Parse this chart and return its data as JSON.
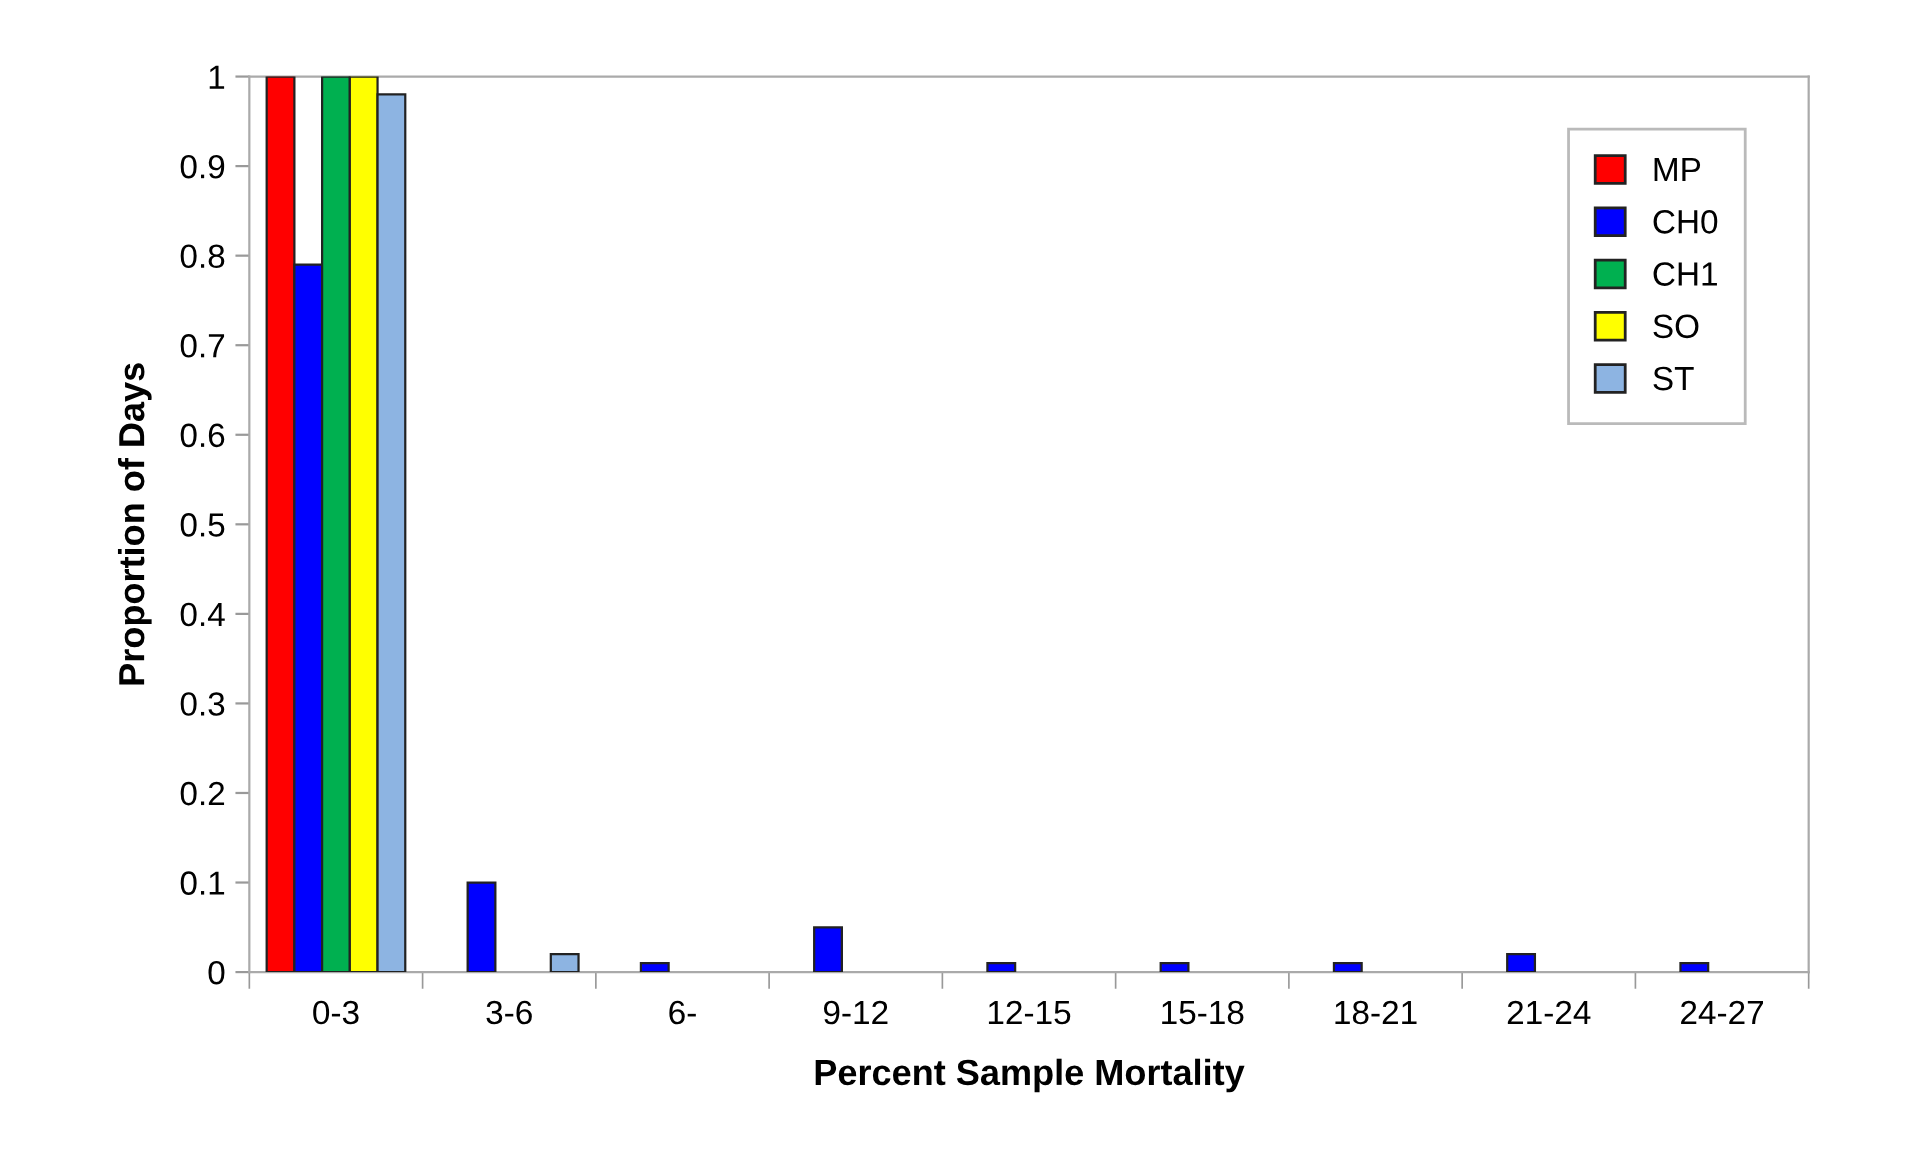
{
  "chart_data": {
    "type": "bar",
    "xlabel": "Percent Sample Mortality",
    "ylabel": "Proportion of Days",
    "categories": [
      "0-3",
      "3-6",
      "6-",
      "9-12",
      "12-15",
      "15-18",
      "18-21",
      "21-24",
      "24-27"
    ],
    "series": [
      {
        "name": "MP",
        "color": "#ff0000",
        "values": [
          1,
          null,
          null,
          null,
          null,
          null,
          null,
          null,
          null
        ]
      },
      {
        "name": "CH0",
        "color": "#0000ff",
        "values": [
          0.79,
          0.1,
          0.01,
          0.05,
          0.01,
          0.01,
          0.01,
          0.02,
          0.01
        ]
      },
      {
        "name": "CH1",
        "color": "#00b050",
        "values": [
          1,
          null,
          null,
          null,
          null,
          null,
          null,
          null,
          null
        ]
      },
      {
        "name": "SO",
        "color": "#ffff00",
        "values": [
          1,
          null,
          null,
          null,
          null,
          null,
          null,
          null,
          null
        ]
      },
      {
        "name": "ST",
        "color": "#8db4e2",
        "values": [
          0.98,
          0.02,
          null,
          null,
          null,
          null,
          null,
          null,
          null
        ]
      }
    ],
    "ylim": [
      0,
      1
    ],
    "yticks": [
      0,
      0.1,
      0.2,
      0.3,
      0.4,
      0.5,
      0.6,
      0.7,
      0.8,
      0.9,
      1
    ],
    "grid": false,
    "legend": "top right"
  }
}
